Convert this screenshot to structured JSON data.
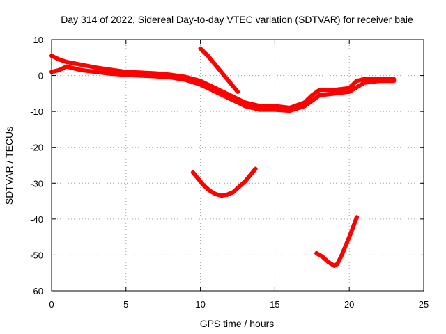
{
  "chart_data": {
    "type": "scatter",
    "title": "Day 314 of 2022, Sidereal Day-to-day VTEC variation (SDTVAR) for receiver baie",
    "xlabel": "GPS time / hours",
    "ylabel": "SDTVAR / TECUs",
    "xlim": [
      0,
      25
    ],
    "ylim": [
      -60,
      10
    ],
    "x_ticks": [
      0,
      5,
      10,
      15,
      20,
      25
    ],
    "y_ticks": [
      10,
      0,
      -10,
      -20,
      -30,
      -40,
      -50,
      -60
    ],
    "grid": true,
    "marker_color": "#ff0000",
    "series": [
      {
        "name": "band-upper",
        "x": [
          0,
          0.5,
          1,
          2,
          3,
          4,
          5,
          6,
          7,
          8,
          9,
          10,
          11,
          12,
          13,
          14,
          15,
          16,
          17,
          17.5,
          18,
          19,
          20,
          20.5,
          21,
          22,
          23
        ],
        "y": [
          5.5,
          4.5,
          3.8,
          3,
          2.2,
          1.6,
          1,
          0.8,
          0.6,
          0.2,
          -0.4,
          -1.5,
          -3.5,
          -5.5,
          -7.5,
          -8.5,
          -8.5,
          -9,
          -7.5,
          -5.5,
          -4,
          -4,
          -3.5,
          -1.5,
          -1,
          -1,
          -1
        ]
      },
      {
        "name": "band-lower",
        "x": [
          0,
          0.5,
          1,
          2,
          3,
          4,
          5,
          6,
          7,
          8,
          9,
          10,
          11,
          12,
          13,
          14,
          15,
          16,
          17,
          18,
          19,
          20,
          21,
          22,
          23
        ],
        "y": [
          1,
          1.5,
          2.5,
          1.5,
          1,
          0.5,
          0.2,
          0,
          -0.2,
          -0.5,
          -1.2,
          -2.5,
          -4.5,
          -6.5,
          -8.5,
          -9.5,
          -9.5,
          -9.8,
          -8.5,
          -5.5,
          -5,
          -4.5,
          -2,
          -1.5,
          -1.5
        ]
      },
      {
        "name": "upper-arc",
        "x": [
          10,
          10.5,
          11,
          11.5,
          12,
          12.5
        ],
        "y": [
          7.5,
          5.5,
          3,
          0.5,
          -2,
          -4.5
        ]
      },
      {
        "name": "middle-arc",
        "x": [
          9.5,
          9.8,
          10.2,
          10.6,
          11,
          11.4,
          11.8,
          12.2,
          12.6,
          13,
          13.4,
          13.7
        ],
        "y": [
          -27,
          -28.5,
          -30.5,
          -32,
          -33,
          -33.5,
          -33.2,
          -32.5,
          -31,
          -29.5,
          -27.5,
          -26
        ]
      },
      {
        "name": "lower-arc",
        "x": [
          17.8,
          18.2,
          18.6,
          19,
          19.2,
          19.5,
          19.8,
          20.1,
          20.5
        ],
        "y": [
          -49.5,
          -50.5,
          -52,
          -53,
          -52.5,
          -50,
          -47,
          -44,
          -39.5
        ]
      }
    ]
  }
}
